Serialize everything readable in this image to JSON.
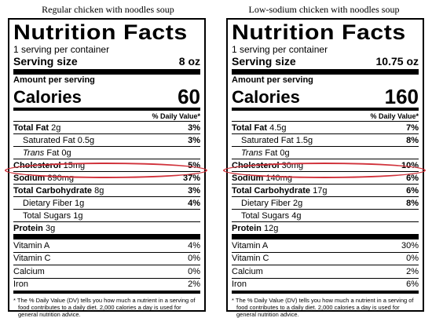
{
  "labels": [
    {
      "caption": "Regular chicken with noodles soup",
      "title": "Nutrition Facts",
      "servings": "1 serving per container",
      "serving_size_label": "Serving size",
      "serving_size_value": "8 oz",
      "amount_per_serving": "Amount per serving",
      "calories_label": "Calories",
      "calories_value": "60",
      "dv_header": "% Daily Value*",
      "total_fat": {
        "label": "Total Fat",
        "amount": "2g",
        "pct": "3%"
      },
      "saturated_fat": {
        "label": "Saturated Fat 0.5g",
        "pct": "3%"
      },
      "trans_fat": {
        "label_italic": "Trans",
        "label_rest": "Fat 0g"
      },
      "cholesterol": {
        "label": "Cholesterol",
        "amount": "15mg",
        "pct": "5%"
      },
      "sodium": {
        "label": "Sodium",
        "amount": "890mg",
        "pct": "37%"
      },
      "carbohydrate": {
        "label": "Total Carbohydrate",
        "amount": "8g",
        "pct": "3%"
      },
      "fiber": {
        "label": "Dietary Fiber 1g",
        "pct": "4%"
      },
      "sugars": {
        "label": "Total Sugars 1g"
      },
      "protein": {
        "label": "Protein",
        "amount": "3g"
      },
      "vitamins": [
        {
          "label": "Vitamin A",
          "pct": "4%"
        },
        {
          "label": "Vitamin C",
          "pct": "0%"
        },
        {
          "label": "Calcium",
          "pct": "0%"
        },
        {
          "label": "Iron",
          "pct": "2%"
        }
      ],
      "footnote": "* The % Daily Value (DV) tells you how much a nutrient in a serving of food contributes to a daily diet. 2,000 calories a day is used for general nutrition advice."
    },
    {
      "caption": "Low-sodium chicken with noodles soup",
      "title": "Nutrition Facts",
      "servings": "1 serving per container",
      "serving_size_label": "Serving size",
      "serving_size_value": "10.75 oz",
      "amount_per_serving": "Amount per serving",
      "calories_label": "Calories",
      "calories_value": "160",
      "dv_header": "% Daily Value*",
      "total_fat": {
        "label": "Total Fat",
        "amount": "4.5g",
        "pct": "7%"
      },
      "saturated_fat": {
        "label": "Saturated Fat 1.5g",
        "pct": "8%"
      },
      "trans_fat": {
        "label_italic": "Trans",
        "label_rest": "Fat 0g"
      },
      "cholesterol": {
        "label": "Cholesterol",
        "amount": "30mg",
        "pct": "10%"
      },
      "sodium": {
        "label": "Sodium",
        "amount": "140mg",
        "pct": "6%"
      },
      "carbohydrate": {
        "label": "Total Carbohydrate",
        "amount": "17g",
        "pct": "6%"
      },
      "fiber": {
        "label": "Dietary Fiber 2g",
        "pct": "8%"
      },
      "sugars": {
        "label": "Total Sugars 4g"
      },
      "protein": {
        "label": "Protein",
        "amount": "12g"
      },
      "vitamins": [
        {
          "label": "Vitamin A",
          "pct": "30%"
        },
        {
          "label": "Vitamin C",
          "pct": "0%"
        },
        {
          "label": "Calcium",
          "pct": "2%"
        },
        {
          "label": "Iron",
          "pct": "6%"
        }
      ],
      "footnote": "* The % Daily Value (DV) tells you how much a nutrient in a serving of food contributes to a daily diet. 2,000 calories a day is used for general nutrition advice."
    }
  ],
  "highlight_color": "#d0313a"
}
